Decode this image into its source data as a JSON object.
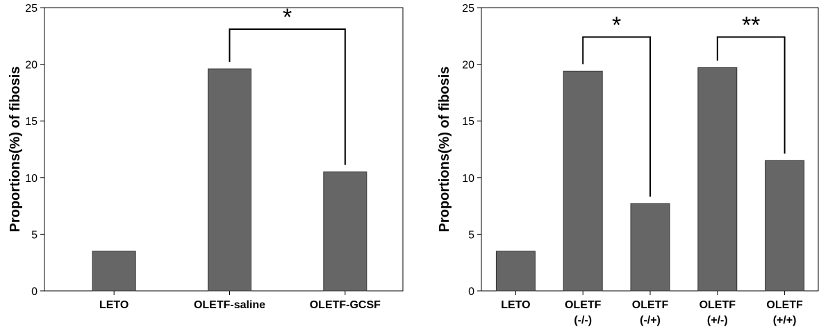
{
  "colors": {
    "bar": "#666666",
    "axis": "#000000",
    "frame": "#000000"
  },
  "chart_data": [
    {
      "type": "bar",
      "categories": [
        [
          "LETO"
        ],
        [
          "OLETF-saline"
        ],
        [
          "OLETF-GCSF"
        ]
      ],
      "values": [
        3.5,
        19.6,
        10.5
      ],
      "ylabel": "Proportions(%) of fibosis",
      "xlabel": "",
      "ylim": [
        0,
        25
      ],
      "yticks": [
        0,
        5,
        10,
        15,
        20,
        25
      ],
      "grid": false,
      "significance": [
        {
          "from": 1,
          "to": 2,
          "label": "*",
          "y": 23.1
        }
      ]
    },
    {
      "type": "bar",
      "categories": [
        [
          "LETO"
        ],
        [
          "OLETF",
          "(-/-)"
        ],
        [
          "OLETF",
          "(-/+)"
        ],
        [
          "OLETF",
          "(+/-)"
        ],
        [
          "OLETF",
          "(+/+)"
        ]
      ],
      "values": [
        3.5,
        19.4,
        7.7,
        19.7,
        11.5
      ],
      "ylabel": "Proportions(%) of fibosis",
      "xlabel": "",
      "ylim": [
        0,
        25
      ],
      "yticks": [
        0,
        5,
        10,
        15,
        20,
        25
      ],
      "grid": false,
      "significance": [
        {
          "from": 1,
          "to": 2,
          "label": "*",
          "y": 22.4
        },
        {
          "from": 3,
          "to": 4,
          "label": "**",
          "y": 22.4
        }
      ]
    }
  ]
}
